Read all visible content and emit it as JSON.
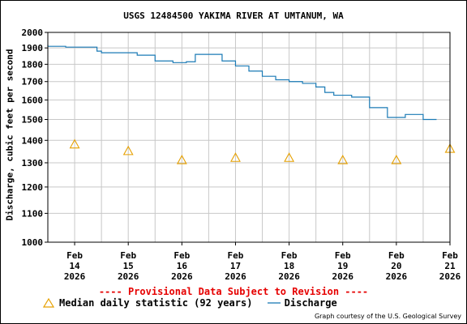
{
  "chart_data": {
    "type": "line",
    "title": "USGS 12484500 YAKIMA RIVER AT UMTANUM, WA",
    "ylabel": "Discharge, cubic feet per second",
    "ylim": [
      1000,
      2000
    ],
    "y_scale": "log",
    "y_ticks": [
      "1000",
      "1100",
      "1200",
      "1300",
      "1400",
      "1500",
      "1600",
      "1700",
      "1800",
      "1900",
      "2000"
    ],
    "x_range": [
      "2026-02-14",
      "2026-02-21T12:00"
    ],
    "x_ticks": [
      {
        "line1": "Feb",
        "line2": "14",
        "line3": "2026"
      },
      {
        "line1": "Feb",
        "line2": "15",
        "line3": "2026"
      },
      {
        "line1": "Feb",
        "line2": "16",
        "line3": "2026"
      },
      {
        "line1": "Feb",
        "line2": "17",
        "line3": "2026"
      },
      {
        "line1": "Feb",
        "line2": "18",
        "line3": "2026"
      },
      {
        "line1": "Feb",
        "line2": "19",
        "line3": "2026"
      },
      {
        "line1": "Feb",
        "line2": "20",
        "line3": "2026"
      },
      {
        "line1": "Feb",
        "line2": "21",
        "line3": "2026"
      }
    ],
    "grid": true,
    "series": [
      {
        "name": "Median daily statistic (92 years)",
        "style": "triangle-markers",
        "color": "#e6a000",
        "x": [
          "2026-02-14T12:00",
          "2026-02-15T12:00",
          "2026-02-16T12:00",
          "2026-02-17T12:00",
          "2026-02-18T12:00",
          "2026-02-19T12:00",
          "2026-02-20T12:00",
          "2026-02-21T12:00"
        ],
        "y": [
          1380,
          1350,
          1310,
          1320,
          1320,
          1310,
          1310,
          1360
        ]
      },
      {
        "name": "Discharge",
        "style": "line",
        "color": "#1a7ab5",
        "x": [
          "2026-02-13T17:00",
          "2026-02-13T20:00",
          "2026-02-14T08:00",
          "2026-02-14T22:00",
          "2026-02-15T00:00",
          "2026-02-15T10:00",
          "2026-02-15T16:00",
          "2026-02-16T00:00",
          "2026-02-16T08:00",
          "2026-02-16T14:00",
          "2026-02-16T18:00",
          "2026-02-16T22:00",
          "2026-02-17T06:00",
          "2026-02-17T12:00",
          "2026-02-17T18:00",
          "2026-02-18T00:00",
          "2026-02-18T06:00",
          "2026-02-18T12:00",
          "2026-02-18T18:00",
          "2026-02-19T00:00",
          "2026-02-19T04:00",
          "2026-02-19T08:00",
          "2026-02-19T12:00",
          "2026-02-19T16:00",
          "2026-02-20T00:00",
          "2026-02-20T08:00",
          "2026-02-20T16:00",
          "2026-02-21T00:00",
          "2026-02-21T06:00"
        ],
        "y": [
          1920,
          1910,
          1905,
          1880,
          1870,
          1870,
          1855,
          1820,
          1810,
          1815,
          1860,
          1860,
          1820,
          1790,
          1760,
          1730,
          1710,
          1700,
          1690,
          1670,
          1640,
          1625,
          1625,
          1615,
          1560,
          1510,
          1525,
          1500,
          1500
        ]
      }
    ]
  },
  "footer": {
    "provisional": "---- Provisional Data Subject to Revision ----",
    "credit": "Graph courtesy of the U.S. Geological Survey"
  }
}
